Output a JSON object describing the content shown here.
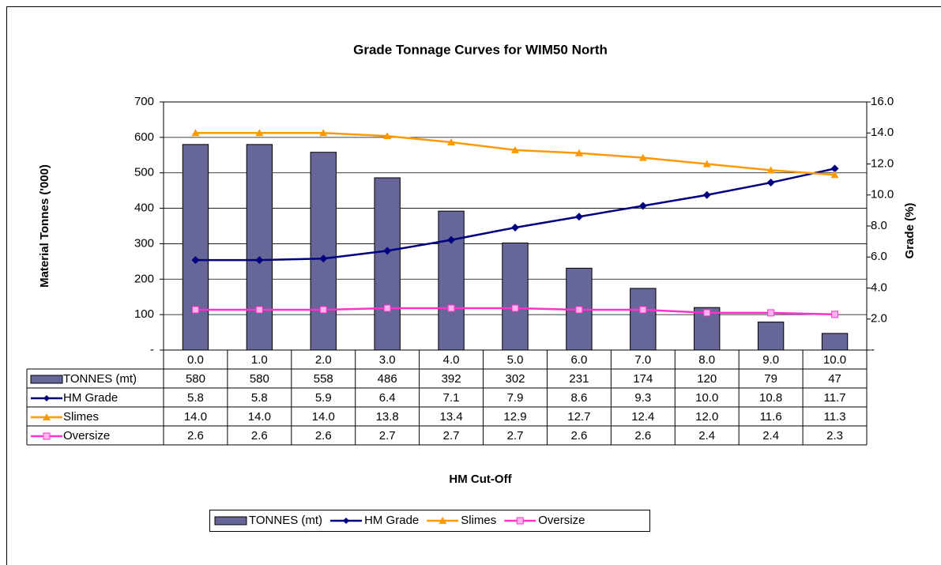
{
  "chart_data": {
    "type": "bar_line_table",
    "title": "Grade Tonnage Curves for WIM50 North",
    "x_label": "HM Cut-Off",
    "y_label": "Material Tonnes ('000)",
    "y2_label": "Grade (%)",
    "categories": [
      "0.0",
      "1.0",
      "2.0",
      "3.0",
      "4.0",
      "5.0",
      "6.0",
      "7.0",
      "8.0",
      "9.0",
      "10.0"
    ],
    "series": [
      {
        "name": "TONNES (mt)",
        "type": "bar",
        "color": "#666699",
        "values": [
          580,
          580,
          558,
          486,
          392,
          302,
          231,
          174,
          120,
          79,
          47
        ]
      },
      {
        "name": "HM Grade",
        "type": "line",
        "axis": "y2",
        "marker": "diamond",
        "color": "#000080",
        "values": [
          5.8,
          5.8,
          5.9,
          6.4,
          7.1,
          7.9,
          8.6,
          9.3,
          10.0,
          10.8,
          11.7
        ],
        "value_labels": [
          "5.8",
          "5.8",
          "5.9",
          "6.4",
          "7.1",
          "7.9",
          "8.6",
          "9.3",
          "10.0",
          "10.8",
          "11.7"
        ]
      },
      {
        "name": "Slimes",
        "type": "line",
        "axis": "y2",
        "marker": "triangle",
        "color": "#ff9900",
        "values": [
          14.0,
          14.0,
          14.0,
          13.8,
          13.4,
          12.9,
          12.7,
          12.4,
          12.0,
          11.6,
          11.3
        ],
        "value_labels": [
          "14.0",
          "14.0",
          "14.0",
          "13.8",
          "13.4",
          "12.9",
          "12.7",
          "12.4",
          "12.0",
          "11.6",
          "11.3"
        ]
      },
      {
        "name": "Oversize",
        "type": "line",
        "axis": "y2",
        "marker": "square",
        "color": "#ff33cc",
        "values": [
          2.6,
          2.6,
          2.6,
          2.7,
          2.7,
          2.7,
          2.6,
          2.6,
          2.4,
          2.4,
          2.3
        ],
        "value_labels": [
          "2.6",
          "2.6",
          "2.6",
          "2.7",
          "2.7",
          "2.7",
          "2.6",
          "2.6",
          "2.4",
          "2.4",
          "2.3"
        ]
      }
    ],
    "ylim": [
      0,
      700
    ],
    "yticks": [
      {
        "value": 0,
        "label": "-"
      },
      100,
      200,
      300,
      400,
      500,
      600,
      700
    ],
    "y2lim": [
      0,
      16
    ],
    "y2ticks": [
      {
        "value": 0,
        "label": "-"
      },
      {
        "value": 2,
        "label": "2.0"
      },
      {
        "value": 4,
        "label": "4.0"
      },
      {
        "value": 6,
        "label": "6.0"
      },
      {
        "value": 8,
        "label": "8.0"
      },
      {
        "value": 10,
        "label": "10.0"
      },
      {
        "value": 12,
        "label": "12.0"
      },
      {
        "value": 14,
        "label": "14.0"
      },
      {
        "value": 16,
        "label": "16.0"
      }
    ],
    "grid": true,
    "legend": "bottom"
  }
}
